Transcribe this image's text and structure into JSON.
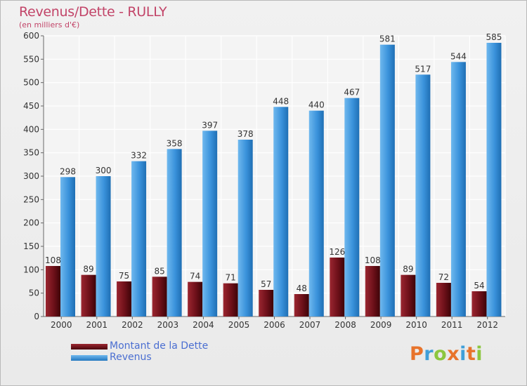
{
  "chart_data": {
    "type": "bar",
    "title": "Revenus/Dette - RULLY",
    "subtitle": "(en milliers d'€)",
    "xlabel": "",
    "ylabel": "",
    "ylim": [
      0,
      600
    ],
    "yticks": [
      0,
      50,
      100,
      150,
      200,
      250,
      300,
      350,
      400,
      450,
      500,
      550,
      600
    ],
    "grid": true,
    "legend_position": "bottom-left",
    "categories": [
      "2000",
      "2001",
      "2002",
      "2003",
      "2004",
      "2005",
      "2006",
      "2007",
      "2008",
      "2009",
      "2010",
      "2011",
      "2012"
    ],
    "series": [
      {
        "name": "Montant de la Dette",
        "color": "#7a1620",
        "values": [
          108,
          89,
          75,
          85,
          74,
          71,
          57,
          48,
          126,
          108,
          89,
          72,
          54
        ]
      },
      {
        "name": "Revenus",
        "color": "#3c95de",
        "values": [
          298,
          300,
          332,
          358,
          397,
          378,
          448,
          440,
          467,
          581,
          517,
          544,
          585
        ]
      }
    ]
  },
  "logo": {
    "text": "Proxiti",
    "colors": [
      "#e8732b",
      "#3f9fd9",
      "#8cc63f",
      "#e8732b",
      "#3f9fd9",
      "#e8732b",
      "#8cc63f"
    ]
  }
}
